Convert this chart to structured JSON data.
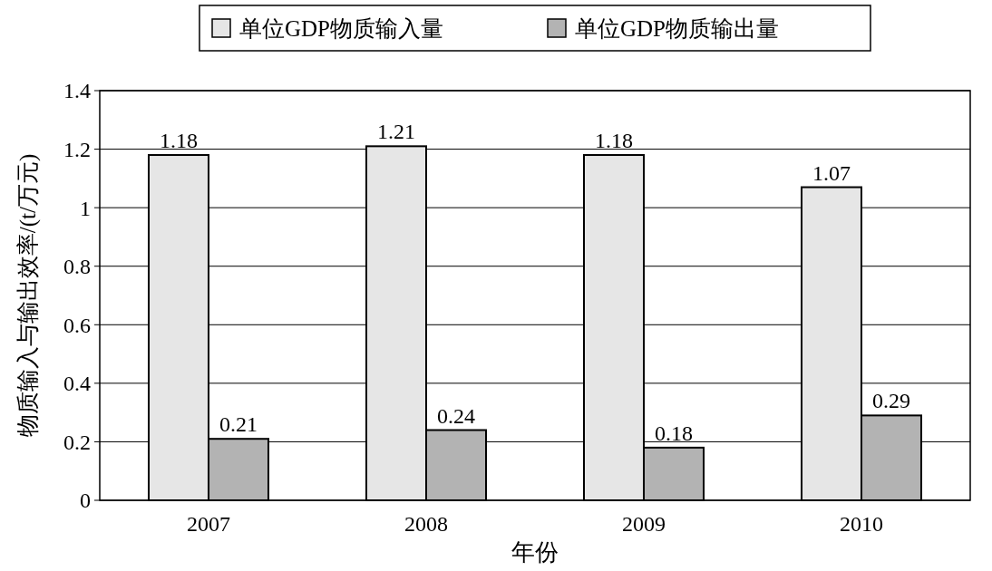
{
  "chart_data": {
    "type": "bar",
    "xlabel": "年份",
    "ylabel": "物质输入与输出效率/(t/万元)",
    "categories": [
      "2007",
      "2008",
      "2009",
      "2010"
    ],
    "series": [
      {
        "name": "单位GDP物质输入量",
        "color": "#e6e6e6",
        "values": [
          1.18,
          1.21,
          1.18,
          1.07
        ]
      },
      {
        "name": "单位GDP物质输出量",
        "color": "#b3b3b3",
        "values": [
          0.21,
          0.24,
          0.18,
          0.29
        ]
      }
    ],
    "ylim": [
      0,
      1.4
    ],
    "yticks": [
      0,
      0.2,
      0.4,
      0.6,
      0.8,
      1,
      1.2,
      1.4
    ],
    "grid": "y",
    "legend": "top",
    "data_labels": true
  }
}
